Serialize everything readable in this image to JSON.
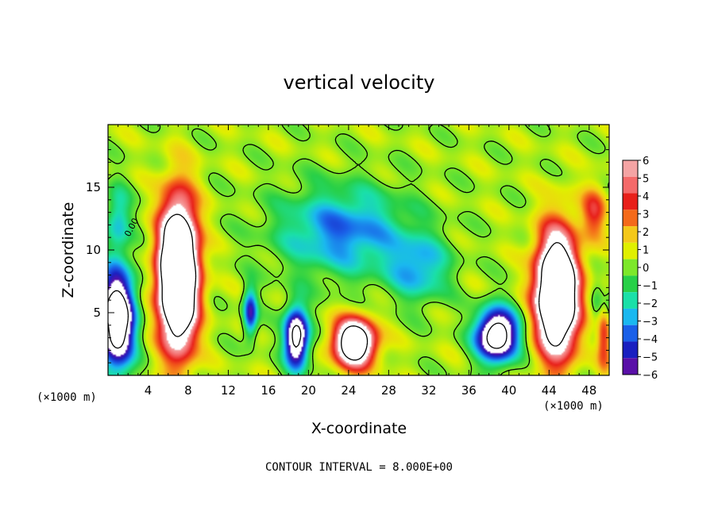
{
  "chart_data": {
    "type": "heatmap",
    "title": "vertical velocity",
    "xlabel": "X-coordinate",
    "ylabel": "Z-coordinate",
    "x_unit_left": "(×1000 m)",
    "x_unit_right": "(×1000 m)",
    "footer": "CONTOUR INTERVAL = 8.000E+00",
    "xlim": [
      0,
      50
    ],
    "ylim": [
      0,
      20
    ],
    "x_ticks": [
      4,
      8,
      12,
      16,
      20,
      24,
      28,
      32,
      36,
      40,
      44,
      48
    ],
    "y_ticks": [
      5,
      10,
      15
    ],
    "colorbar": {
      "ticks": [
        6,
        5,
        4,
        3,
        2,
        1,
        0,
        -1,
        -2,
        -3,
        -4,
        -5,
        -6
      ],
      "colors": [
        "#f4a4a4",
        "#f46a6a",
        "#e8201a",
        "#f46a1a",
        "#f4c81a",
        "#e0f000",
        "#7de82a",
        "#28d048",
        "#1ae0a8",
        "#1ab8f0",
        "#1a60e8",
        "#1a20c0",
        "#5a10a8"
      ]
    },
    "contour_label": "0.00",
    "features": [
      {
        "kind": "updraft",
        "x": 7.0,
        "z": 8.0,
        "rx": 2.2,
        "rz": 6.5,
        "amp": 18
      },
      {
        "kind": "updraft",
        "x": 44.8,
        "z": 6.5,
        "rx": 2.4,
        "rz": 5.5,
        "amp": 16
      },
      {
        "kind": "updraft",
        "x": 24.6,
        "z": 2.6,
        "rx": 2.4,
        "rz": 2.2,
        "amp": 12
      },
      {
        "kind": "updraft",
        "x": 49.5,
        "z": 4.0,
        "rx": 0.9,
        "rz": 3.5,
        "amp": 7
      },
      {
        "kind": "updraft",
        "x": 48.5,
        "z": 13.0,
        "rx": 1.5,
        "rz": 2.5,
        "amp": 3.5
      },
      {
        "kind": "downdraft",
        "x": 0.9,
        "z": 4.5,
        "rx": 2.0,
        "rz": 4.5,
        "amp": -12
      },
      {
        "kind": "downdraft",
        "x": 18.8,
        "z": 3.0,
        "rx": 1.4,
        "rz": 2.8,
        "amp": -10
      },
      {
        "kind": "downdraft",
        "x": 38.8,
        "z": 3.2,
        "rx": 2.4,
        "rz": 2.4,
        "amp": -11
      },
      {
        "kind": "downdraft",
        "x": 49.5,
        "z": 5.0,
        "rx": 1.2,
        "rz": 3.0,
        "amp": -5
      },
      {
        "kind": "downdraft",
        "x": 14.2,
        "z": 5.0,
        "rx": 0.8,
        "rz": 2.2,
        "amp": -6
      },
      {
        "kind": "downdraft",
        "x": 23.5,
        "z": 11.5,
        "rx": 7.5,
        "rz": 4.0,
        "amp": -4.3
      },
      {
        "kind": "downdraft",
        "x": 31.0,
        "z": 8.5,
        "rx": 3.5,
        "rz": 3.0,
        "amp": -3.5
      },
      {
        "kind": "downdraft",
        "x": 1.0,
        "z": 12.5,
        "rx": 1.5,
        "rz": 3.0,
        "amp": -3
      }
    ]
  }
}
